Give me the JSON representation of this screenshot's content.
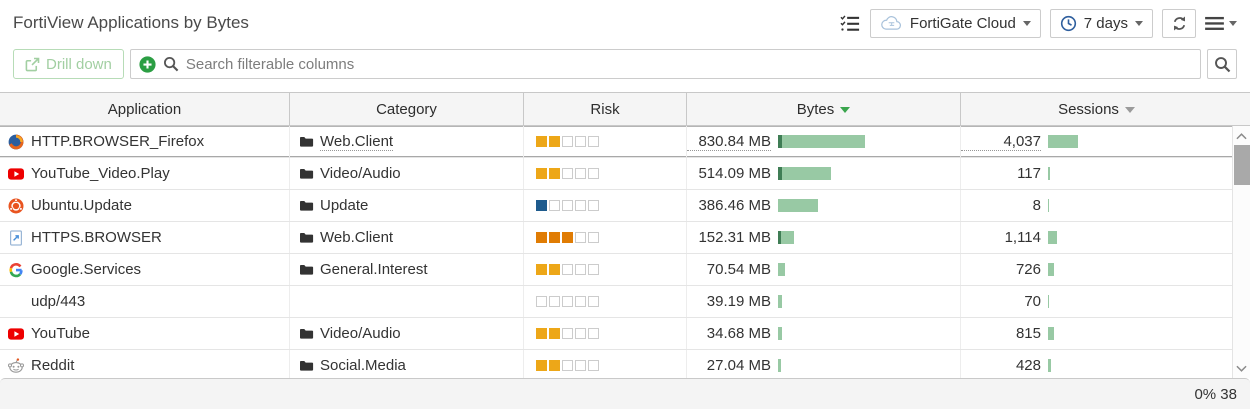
{
  "header": {
    "title": "FortiView Applications by Bytes",
    "device_dropdown": "FortiGate Cloud",
    "time_dropdown": "7 days"
  },
  "toolbar": {
    "drill_down": "Drill down",
    "search_placeholder": "Search filterable columns"
  },
  "table": {
    "columns": [
      {
        "label": "Application"
      },
      {
        "label": "Category"
      },
      {
        "label": "Risk"
      },
      {
        "label": "Bytes",
        "sort": "desc-active"
      },
      {
        "label": "Sessions",
        "sort": "desc"
      }
    ],
    "risk_colors": {
      "yellow": "#EDA718",
      "orange": "#E07C04",
      "blue": "#1E5B8D"
    },
    "bar_colors": {
      "light": "#98C9A4",
      "dark": "#3F7D55"
    },
    "rows": [
      {
        "app": "HTTP.BROWSER_Firefox",
        "icon": "firefox",
        "category": "Web.Client",
        "risk": {
          "filled": 2,
          "color": "yellow"
        },
        "bytes": "830.84 MB",
        "bytes_bar": {
          "dark": 4,
          "light": 83
        },
        "sessions": "4,037",
        "sessions_bar": 30,
        "hovered": true
      },
      {
        "app": "YouTube_Video.Play",
        "icon": "youtube",
        "category": "Video/Audio",
        "risk": {
          "filled": 2,
          "color": "yellow"
        },
        "bytes": "514.09 MB",
        "bytes_bar": {
          "dark": 4,
          "light": 49
        },
        "sessions": "117",
        "sessions_bar": 2
      },
      {
        "app": "Ubuntu.Update",
        "icon": "ubuntu",
        "category": "Update",
        "risk": {
          "filled": 1,
          "color": "blue"
        },
        "bytes": "386.46 MB",
        "bytes_bar": {
          "dark": 0,
          "light": 40
        },
        "sessions": "8",
        "sessions_bar": 1
      },
      {
        "app": "HTTPS.BROWSER",
        "icon": "browser",
        "category": "Web.Client",
        "risk": {
          "filled": 3,
          "color": "orange"
        },
        "bytes": "152.31 MB",
        "bytes_bar": {
          "dark": 3,
          "light": 13
        },
        "sessions": "1,114",
        "sessions_bar": 9
      },
      {
        "app": "Google.Services",
        "icon": "google",
        "category": "General.Interest",
        "risk": {
          "filled": 2,
          "color": "yellow"
        },
        "bytes": "70.54 MB",
        "bytes_bar": {
          "dark": 0,
          "light": 7
        },
        "sessions": "726",
        "sessions_bar": 6
      },
      {
        "app": "udp/443",
        "icon": null,
        "category": null,
        "risk": {
          "filled": 0,
          "color": "yellow"
        },
        "bytes": "39.19 MB",
        "bytes_bar": {
          "dark": 0,
          "light": 4
        },
        "sessions": "70",
        "sessions_bar": 1
      },
      {
        "app": "YouTube",
        "icon": "youtube",
        "category": "Video/Audio",
        "risk": {
          "filled": 2,
          "color": "yellow"
        },
        "bytes": "34.68 MB",
        "bytes_bar": {
          "dark": 0,
          "light": 4
        },
        "sessions": "815",
        "sessions_bar": 6
      },
      {
        "app": "Reddit",
        "icon": "reddit",
        "category": "Social.Media",
        "risk": {
          "filled": 2,
          "color": "yellow"
        },
        "bytes": "27.04 MB",
        "bytes_bar": {
          "dark": 0,
          "light": 3
        },
        "sessions": "428",
        "sessions_bar": 3
      }
    ]
  },
  "footer": {
    "status": "0% 38"
  }
}
